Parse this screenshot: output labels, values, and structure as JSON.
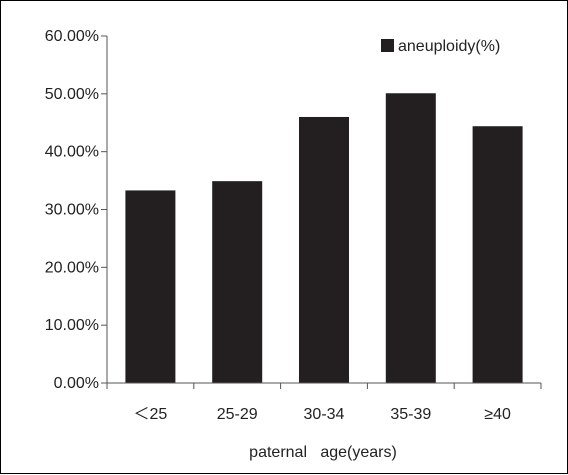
{
  "chart_data": {
    "type": "bar",
    "categories": [
      "＜25",
      "25-29",
      "30-34",
      "35-39",
      "≥40"
    ],
    "series": [
      {
        "name": "aneuploidy(%)",
        "values": [
          33.3,
          34.9,
          46.0,
          50.1,
          44.4
        ],
        "color": "#231f20"
      }
    ],
    "xlabel": "paternal   age(years)",
    "ylabel": "",
    "ylim": [
      0,
      60
    ],
    "yticks": [
      "0.00%",
      "10.00%",
      "20.00%",
      "30.00%",
      "40.00%",
      "50.00%",
      "60.00%"
    ],
    "grid": false,
    "legend": "top-right"
  }
}
